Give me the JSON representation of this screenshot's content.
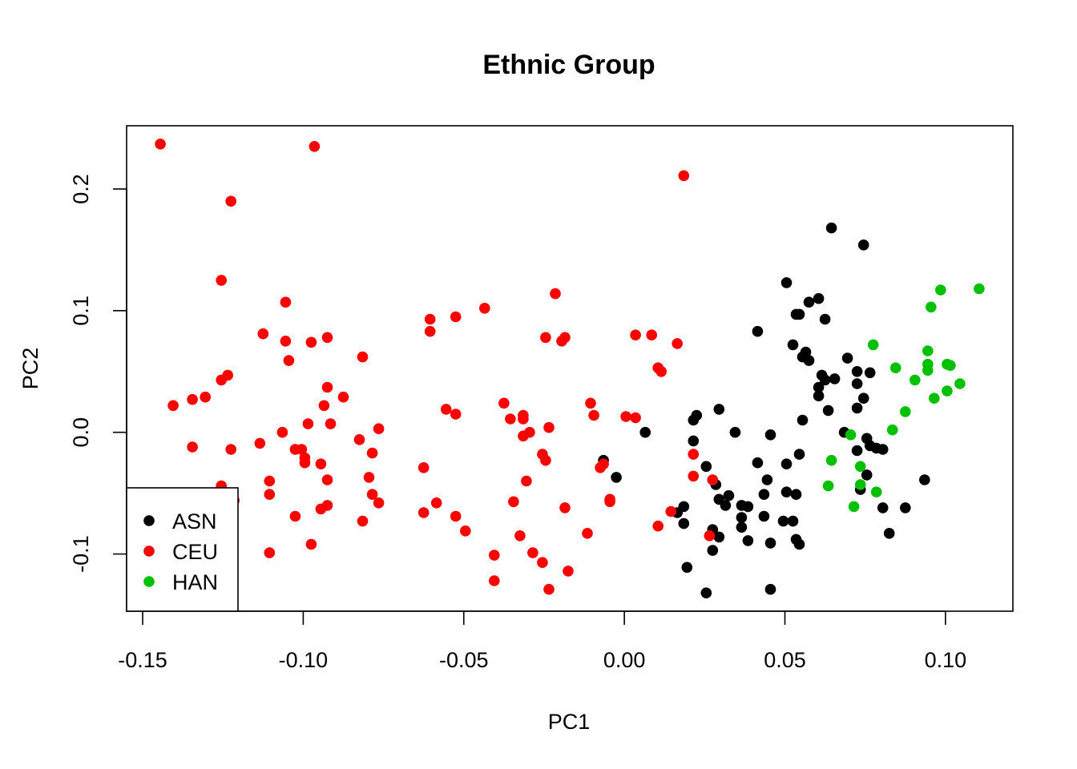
{
  "chart_data": {
    "type": "scatter",
    "title": "Ethnic Group",
    "xlabel": "PC1",
    "ylabel": "PC2",
    "xticks": [
      "-0.15",
      "-0.10",
      "-0.05",
      "0.00",
      "0.05",
      "0.10"
    ],
    "yticks": [
      "-0.1",
      "0.0",
      "0.1",
      "0.2"
    ],
    "xlim": [
      -0.155,
      0.121
    ],
    "ylim": [
      -0.147,
      0.252
    ],
    "grid": false,
    "legend_position": "bottom-left",
    "series": [
      {
        "name": "ASN",
        "color": "#000000",
        "points": [
          [
            0.0645,
            0.168
          ],
          [
            0.0745,
            0.154
          ],
          [
            0.0505,
            0.123
          ],
          [
            0.0535,
            0.097
          ],
          [
            0.0545,
            0.097
          ],
          [
            0.0575,
            0.107
          ],
          [
            0.0605,
            0.11
          ],
          [
            0.0625,
            0.093
          ],
          [
            0.0415,
            0.083
          ],
          [
            0.0525,
            0.072
          ],
          [
            0.0565,
            0.066
          ],
          [
            0.0555,
            0.062
          ],
          [
            0.0575,
            0.059
          ],
          [
            0.0695,
            0.061
          ],
          [
            0.0615,
            0.047
          ],
          [
            0.0625,
            0.043
          ],
          [
            0.0655,
            0.044
          ],
          [
            0.0725,
            0.05
          ],
          [
            0.0765,
            0.049
          ],
          [
            0.0725,
            0.04
          ],
          [
            0.0605,
            0.037
          ],
          [
            0.0605,
            0.03
          ],
          [
            0.0745,
            0.028
          ],
          [
            0.0635,
            0.018
          ],
          [
            0.0725,
            0.02
          ],
          [
            0.0555,
            0.01
          ],
          [
            0.0295,
            0.019
          ],
          [
            0.0225,
            0.014
          ],
          [
            0.0215,
            0.01
          ],
          [
            0.0065,
            0.0
          ],
          [
            0.0345,
            0.0
          ],
          [
            0.0455,
            -0.002
          ],
          [
            0.0685,
            0.0
          ],
          [
            0.0725,
            -0.015
          ],
          [
            0.0755,
            -0.005
          ],
          [
            0.0765,
            -0.011
          ],
          [
            0.0785,
            -0.013
          ],
          [
            0.0805,
            -0.014
          ],
          [
            0.0215,
            -0.007
          ],
          [
            0.0255,
            -0.028
          ],
          [
            0.0415,
            -0.025
          ],
          [
            0.0505,
            -0.026
          ],
          [
            0.0545,
            -0.018
          ],
          [
            0.0735,
            -0.047
          ],
          [
            0.0755,
            -0.035
          ],
          [
            0.0445,
            -0.039
          ],
          [
            -0.0065,
            -0.023
          ],
          [
            -0.0025,
            -0.037
          ],
          [
            0.0285,
            -0.043
          ],
          [
            0.0295,
            -0.055
          ],
          [
            0.0325,
            -0.052
          ],
          [
            0.0315,
            -0.06
          ],
          [
            0.0365,
            -0.06
          ],
          [
            0.0365,
            -0.07
          ],
          [
            0.0385,
            -0.061
          ],
          [
            0.0435,
            -0.051
          ],
          [
            0.0505,
            -0.049
          ],
          [
            0.0535,
            -0.051
          ],
          [
            0.0435,
            -0.069
          ],
          [
            0.0495,
            -0.073
          ],
          [
            0.0525,
            -0.073
          ],
          [
            0.0365,
            -0.078
          ],
          [
            0.0185,
            -0.061
          ],
          [
            0.0165,
            -0.066
          ],
          [
            0.0185,
            -0.075
          ],
          [
            0.0275,
            -0.08
          ],
          [
            0.0295,
            -0.086
          ],
          [
            0.0385,
            -0.089
          ],
          [
            0.0455,
            -0.091
          ],
          [
            0.0535,
            -0.088
          ],
          [
            0.0545,
            -0.092
          ],
          [
            0.0275,
            -0.097
          ],
          [
            0.0805,
            -0.062
          ],
          [
            0.0875,
            -0.062
          ],
          [
            0.0825,
            -0.083
          ],
          [
            0.0195,
            -0.111
          ],
          [
            0.0255,
            -0.132
          ],
          [
            0.0455,
            -0.129
          ],
          [
            0.0935,
            -0.039
          ]
        ]
      },
      {
        "name": "CEU",
        "color": "#ff0000",
        "points": [
          [
            -0.1445,
            0.237
          ],
          [
            -0.0965,
            0.235
          ],
          [
            -0.1225,
            0.19
          ],
          [
            -0.1255,
            0.125
          ],
          [
            -0.1055,
            0.107
          ],
          [
            -0.1125,
            0.081
          ],
          [
            -0.1055,
            0.075
          ],
          [
            -0.0975,
            0.074
          ],
          [
            -0.0925,
            0.078
          ],
          [
            -0.1045,
            0.059
          ],
          [
            -0.0815,
            0.062
          ],
          [
            -0.1405,
            0.022
          ],
          [
            -0.1345,
            0.027
          ],
          [
            -0.1305,
            0.029
          ],
          [
            -0.1255,
            0.043
          ],
          [
            -0.1235,
            0.047
          ],
          [
            -0.0925,
            0.037
          ],
          [
            -0.0875,
            0.029
          ],
          [
            -0.0935,
            0.022
          ],
          [
            -0.0985,
            0.007
          ],
          [
            -0.0915,
            0.007
          ],
          [
            -0.1065,
            0.0
          ],
          [
            -0.1025,
            -0.014
          ],
          [
            -0.1005,
            -0.014
          ],
          [
            -0.1135,
            -0.009
          ],
          [
            -0.1345,
            -0.012
          ],
          [
            -0.1225,
            -0.014
          ],
          [
            -0.0995,
            -0.021
          ],
          [
            -0.0995,
            -0.025
          ],
          [
            -0.0945,
            -0.026
          ],
          [
            -0.0825,
            -0.006
          ],
          [
            -0.0785,
            -0.017
          ],
          [
            -0.0765,
            0.003
          ],
          [
            -0.0925,
            -0.039
          ],
          [
            -0.0795,
            -0.037
          ],
          [
            -0.0785,
            -0.051
          ],
          [
            -0.0765,
            -0.058
          ],
          [
            -0.0815,
            -0.073
          ],
          [
            -0.1105,
            -0.04
          ],
          [
            -0.1105,
            -0.051
          ],
          [
            -0.1255,
            -0.044
          ],
          [
            -0.1215,
            -0.056
          ],
          [
            -0.1025,
            -0.069
          ],
          [
            -0.0945,
            -0.063
          ],
          [
            -0.0925,
            -0.06
          ],
          [
            -0.0975,
            -0.092
          ],
          [
            -0.1105,
            -0.099
          ],
          [
            -0.0605,
            0.093
          ],
          [
            -0.0605,
            0.083
          ],
          [
            -0.0525,
            0.095
          ],
          [
            -0.0435,
            0.102
          ],
          [
            -0.0215,
            0.114
          ],
          [
            -0.0245,
            0.078
          ],
          [
            -0.0195,
            0.075
          ],
          [
            -0.0185,
            0.078
          ],
          [
            -0.0375,
            0.024
          ],
          [
            -0.0555,
            0.019
          ],
          [
            -0.0525,
            0.015
          ],
          [
            -0.0355,
            0.011
          ],
          [
            -0.0315,
            0.014
          ],
          [
            -0.0315,
            0.011
          ],
          [
            -0.0315,
            -0.003
          ],
          [
            -0.0295,
            0.0
          ],
          [
            -0.0235,
            0.004
          ],
          [
            -0.0625,
            -0.029
          ],
          [
            -0.0255,
            -0.018
          ],
          [
            -0.0245,
            -0.023
          ],
          [
            -0.0305,
            -0.04
          ],
          [
            -0.0345,
            -0.057
          ],
          [
            -0.0625,
            -0.066
          ],
          [
            -0.0585,
            -0.058
          ],
          [
            -0.0525,
            -0.069
          ],
          [
            -0.0495,
            -0.081
          ],
          [
            -0.0325,
            -0.085
          ],
          [
            -0.0185,
            -0.062
          ],
          [
            -0.0405,
            -0.101
          ],
          [
            -0.0405,
            -0.122
          ],
          [
            -0.0285,
            -0.099
          ],
          [
            -0.0255,
            -0.107
          ],
          [
            -0.0235,
            -0.129
          ],
          [
            -0.0175,
            -0.114
          ],
          [
            0.0035,
            0.08
          ],
          [
            0.0085,
            0.08
          ],
          [
            0.0165,
            0.073
          ],
          [
            -0.0105,
            0.024
          ],
          [
            -0.0095,
            0.014
          ],
          [
            0.0005,
            0.013
          ],
          [
            0.0035,
            0.012
          ],
          [
            0.0105,
            0.053
          ],
          [
            0.0115,
            0.05
          ],
          [
            0.0185,
            0.211
          ],
          [
            -0.0075,
            -0.029
          ],
          [
            -0.0065,
            -0.026
          ],
          [
            -0.0045,
            -0.055
          ],
          [
            -0.0045,
            -0.057
          ],
          [
            -0.0115,
            -0.083
          ],
          [
            0.0215,
            -0.018
          ],
          [
            0.0215,
            -0.036
          ],
          [
            0.0145,
            -0.065
          ],
          [
            0.0105,
            -0.077
          ],
          [
            0.0265,
            -0.085
          ],
          [
            0.0275,
            -0.039
          ]
        ]
      },
      {
        "name": "HAN",
        "color": "#00c000",
        "points": [
          [
            0.1105,
            0.118
          ],
          [
            0.0985,
            0.117
          ],
          [
            0.0955,
            0.103
          ],
          [
            0.0775,
            0.072
          ],
          [
            0.0845,
            0.053
          ],
          [
            0.0945,
            0.067
          ],
          [
            0.0945,
            0.056
          ],
          [
            0.0945,
            0.051
          ],
          [
            0.1005,
            0.056
          ],
          [
            0.1015,
            0.055
          ],
          [
            0.0905,
            0.043
          ],
          [
            0.1045,
            0.04
          ],
          [
            0.1005,
            0.034
          ],
          [
            0.0965,
            0.028
          ],
          [
            0.0875,
            0.017
          ],
          [
            0.0835,
            0.002
          ],
          [
            0.0705,
            -0.002
          ],
          [
            0.0645,
            -0.023
          ],
          [
            0.0735,
            -0.028
          ],
          [
            0.0635,
            -0.044
          ],
          [
            0.0735,
            -0.043
          ],
          [
            0.0785,
            -0.049
          ],
          [
            0.0715,
            -0.061
          ]
        ]
      }
    ]
  }
}
